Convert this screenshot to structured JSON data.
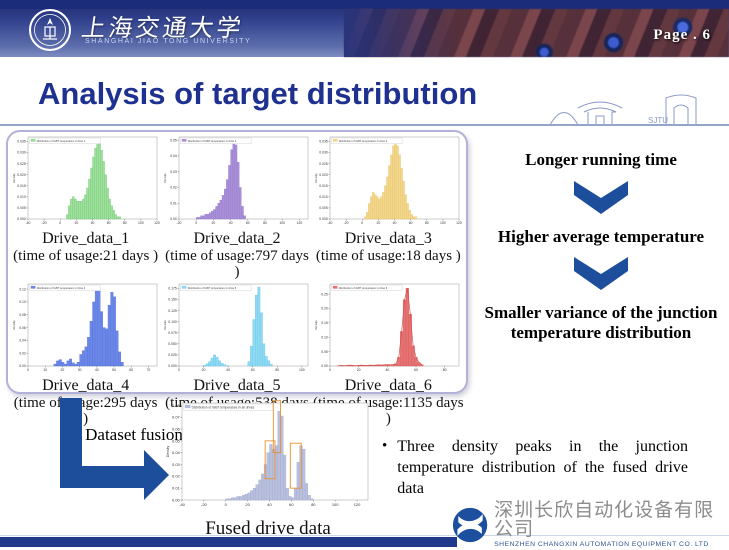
{
  "header": {
    "university_cn": "上海交通大学",
    "university_en": "SHANGHAI JIAO TONG UNIVERSITY",
    "page_label": "Page .  6"
  },
  "title": "Analysis of target distribution",
  "flow": {
    "step1": "Longer running time",
    "step2": "Higher average temperature",
    "step3": "Smaller variance of the junction temperature distribution"
  },
  "fusion": {
    "label": "Dataset fusion",
    "caption": "Fused drive data",
    "bullet": "Three density peaks in the junction temperature distribution of the fused drive data"
  },
  "footer": {
    "company_cn": "深圳长欣自动化设备有限公司",
    "company_en": "SHENZHEN CHANGXIN AUTOMATION EQUIPMENT CO. LTD"
  },
  "chart_data": [
    {
      "type": "histogram",
      "name": "Drive_data_1",
      "usage": "(time of usage:21 days )",
      "legend": "Distribution of IGBT temperature in drive 1",
      "ylabel": "Density",
      "fill": "#9fe09b",
      "edge": "#6cc477",
      "xlim": [
        -40,
        120
      ],
      "bin_start": 7.5,
      "bin_width": 2.5,
      "ymax": 0.037,
      "values": [
        0.002,
        0.006,
        0.009,
        0.01,
        0.009,
        0.008,
        0.008,
        0.008,
        0.009,
        0.011,
        0.014,
        0.018,
        0.023,
        0.028,
        0.032,
        0.035,
        0.034,
        0.031,
        0.026,
        0.02,
        0.014,
        0.009,
        0.006,
        0.004,
        0.002,
        0.001,
        0.001
      ],
      "yticks": [
        "0.000",
        "0.005",
        "0.010",
        "0.015",
        "0.020",
        "0.025",
        "0.030",
        "0.035"
      ],
      "xticks": [
        -40,
        -20,
        0,
        20,
        40,
        60,
        80,
        100,
        120
      ]
    },
    {
      "type": "histogram",
      "name": "Drive_data_2",
      "usage": "(time of usage:797 days )",
      "legend": "Distribution of IGBT temperature in drive 2",
      "ylabel": "Density",
      "fill": "#a98fd8",
      "edge": "#8f74c9",
      "xlim": [
        -20,
        130
      ],
      "bin_start": 0,
      "bin_width": 2.5,
      "ymax": 0.052,
      "values": [
        0.001,
        0.001,
        0.002,
        0.002,
        0.003,
        0.003,
        0.004,
        0.005,
        0.006,
        0.008,
        0.01,
        0.012,
        0.015,
        0.019,
        0.025,
        0.034,
        0.044,
        0.05,
        0.047,
        0.036,
        0.02,
        0.008,
        0.002
      ],
      "yticks": [
        "0.00",
        "0.01",
        "0.02",
        "0.03",
        "0.04",
        "0.05"
      ],
      "xticks": [
        -20,
        0,
        20,
        40,
        60,
        80,
        100,
        120
      ]
    },
    {
      "type": "histogram",
      "name": "Drive_data_3",
      "usage": "(time of usage:18 days )",
      "legend": "Distribution of IGBT temperature in drive 3",
      "ylabel": "Density",
      "fill": "#f3d78e",
      "edge": "#e4bf5f",
      "xlim": [
        -40,
        120
      ],
      "bin_start": 2.5,
      "bin_width": 2.5,
      "ymax": 0.037,
      "values": [
        0.001,
        0.003,
        0.007,
        0.01,
        0.012,
        0.011,
        0.01,
        0.009,
        0.01,
        0.012,
        0.015,
        0.019,
        0.024,
        0.029,
        0.033,
        0.035,
        0.033,
        0.029,
        0.023,
        0.017,
        0.011,
        0.007,
        0.004,
        0.002,
        0.001,
        0.001
      ],
      "yticks": [
        "0.000",
        "0.005",
        "0.010",
        "0.015",
        "0.020",
        "0.025",
        "0.030",
        "0.035"
      ],
      "xticks": [
        -40,
        -20,
        0,
        20,
        40,
        60,
        80,
        100,
        120
      ]
    },
    {
      "type": "histogram",
      "name": "Drive_data_4",
      "usage": "(time of usage:295 days )",
      "legend": "Distribution of IGBT temperature in drive 4",
      "ylabel": "Density",
      "fill": "#6b87e8",
      "edge": "#4f6bd4",
      "xlim": [
        0,
        75
      ],
      "bin_start": 15,
      "bin_width": 1.5,
      "ymax": 0.128,
      "values": [
        0.003,
        0.008,
        0.01,
        0.006,
        0.003,
        0.008,
        0.011,
        0.005,
        0.003,
        0.006,
        0.018,
        0.024,
        0.03,
        0.045,
        0.07,
        0.1,
        0.122,
        0.118,
        0.085,
        0.06,
        0.058,
        0.095,
        0.115,
        0.108,
        0.055,
        0.022,
        0.006
      ],
      "yticks": [
        "0.00",
        "0.02",
        "0.04",
        "0.06",
        "0.08",
        "0.10",
        "0.12"
      ],
      "xticks": [
        0,
        10,
        20,
        30,
        40,
        50,
        60,
        70
      ]
    },
    {
      "type": "histogram",
      "name": "Drive_data_5",
      "usage": "(time of usage:538 days )",
      "legend": "Distribution of IGBT temperature in drive 5",
      "ylabel": "Density",
      "fill": "#8fd9f2",
      "edge": "#5fc3e8",
      "xlim": [
        0,
        105
      ],
      "bin_start": 20,
      "bin_width": 2,
      "ymax": 0.185,
      "values": [
        0.002,
        0.005,
        0.01,
        0.018,
        0.025,
        0.02,
        0.012,
        0.006,
        0.003,
        0.001,
        0,
        0,
        0,
        0,
        0,
        0,
        0,
        0,
        0.01,
        0.045,
        0.105,
        0.16,
        0.178,
        0.12,
        0.05,
        0.022,
        0.012,
        0.004
      ],
      "yticks": [
        "0.000",
        "0.025",
        "0.050",
        "0.075",
        "0.100",
        "0.125",
        "0.150",
        "0.175"
      ],
      "xticks": [
        0,
        20,
        40,
        60,
        80,
        100
      ]
    },
    {
      "type": "histogram",
      "name": "Drive_data_6",
      "usage": "(time of usage:1135 days )",
      "legend": "Distribution of IGBT temperature in drive 6",
      "ylabel": "Density",
      "fill": "#e57373",
      "edge": "#d64f4f",
      "kde": true,
      "xlim": [
        0,
        90
      ],
      "bin_start": 5,
      "bin_width": 2,
      "ymax": 0.285,
      "values": [
        0.001,
        0.002,
        0.001,
        0.002,
        0.003,
        0.002,
        0.001,
        0.002,
        0.003,
        0.002,
        0.002,
        0.003,
        0.002,
        0.003,
        0.004,
        0.003,
        0.004,
        0.005,
        0.004,
        0.005,
        0.008,
        0.03,
        0.12,
        0.23,
        0.27,
        0.18,
        0.07,
        0.03,
        0.012,
        0.005
      ],
      "yticks": [
        "0.00",
        "0.05",
        "0.10",
        "0.15",
        "0.20",
        "0.25"
      ],
      "xticks": [
        0,
        20,
        40,
        60,
        80
      ]
    },
    {
      "type": "histogram",
      "name": "Fused drive data",
      "legend": "Distribution of IGBT temperature in all drives",
      "ylabel": "Density",
      "fill": "#b9c0de",
      "edge": "#9aa3cc",
      "box_color": "#e8912e",
      "xlim": [
        -40,
        130
      ],
      "bin_start": 0,
      "bin_width": 2.5,
      "ymax": 0.082,
      "values": [
        0.001,
        0.001,
        0.002,
        0.002,
        0.003,
        0.003,
        0.004,
        0.005,
        0.006,
        0.008,
        0.01,
        0.013,
        0.017,
        0.022,
        0.03,
        0.04,
        0.047,
        0.043,
        0.046,
        0.075,
        0.071,
        0.038,
        0.01,
        0.003,
        0.002,
        0.01,
        0.032,
        0.046,
        0.043,
        0.014,
        0.004,
        0.001
      ],
      "yticks": [
        "0.00",
        "0.01",
        "0.02",
        "0.03",
        "0.04",
        "0.05",
        "0.06",
        "0.07",
        "0.08"
      ],
      "xticks": [
        -40,
        -20,
        0,
        20,
        40,
        60,
        80,
        100,
        120
      ],
      "boxes": [
        {
          "x0": 36,
          "x1": 45,
          "y0": 0.018,
          "y1": 0.05
        },
        {
          "x0": 43.5,
          "x1": 50,
          "y0": 0.04,
          "y1": 0.084
        },
        {
          "x0": 59,
          "x1": 69,
          "y0": 0.01,
          "y1": 0.048
        }
      ]
    }
  ]
}
